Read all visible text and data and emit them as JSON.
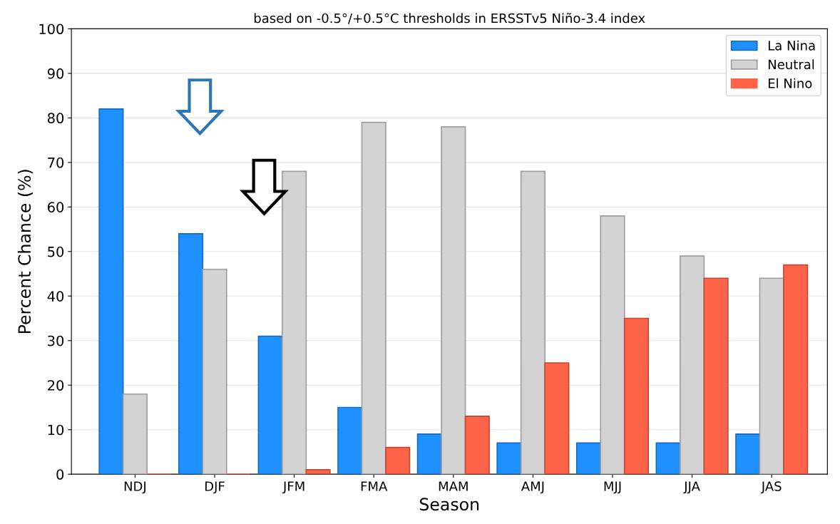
{
  "chart_data": {
    "type": "bar",
    "title": "based on -0.5°/+0.5°C thresholds in ERSSTv5 Niño-3.4 index",
    "xlabel": "Season",
    "ylabel": "Percent Chance (%)",
    "categories": [
      "NDJ",
      "DJF",
      "JFM",
      "FMA",
      "MAM",
      "AMJ",
      "MJJ",
      "JJA",
      "JAS"
    ],
    "series": [
      {
        "name": "La Nina",
        "color": "#1e90ff",
        "values": [
          82,
          54,
          31,
          15,
          9,
          7,
          7,
          7,
          9
        ]
      },
      {
        "name": "Neutral",
        "color": "#d3d3d3",
        "values": [
          18,
          46,
          68,
          79,
          78,
          68,
          58,
          49,
          44
        ]
      },
      {
        "name": "El Nino",
        "color": "#ff6347",
        "values": [
          0,
          0,
          1,
          6,
          13,
          25,
          35,
          44,
          47
        ]
      }
    ],
    "ylim": [
      0,
      100
    ],
    "yticks": [
      0,
      10,
      20,
      30,
      40,
      50,
      60,
      70,
      80,
      90,
      100
    ],
    "grid": "y",
    "legend": "top right"
  }
}
